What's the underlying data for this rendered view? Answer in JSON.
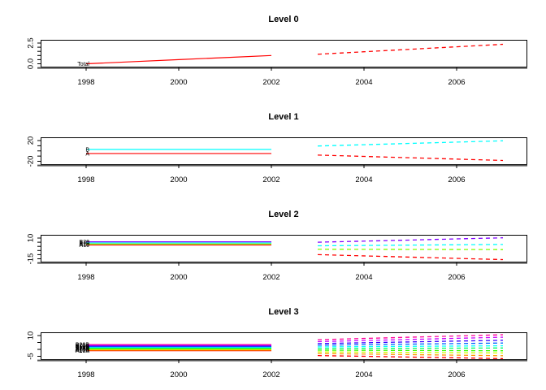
{
  "figure": {
    "background": "#FFFFFF",
    "axis_color": "#000000",
    "heavy_axis_color": "#555555"
  },
  "chart_data": [
    {
      "type": "line",
      "title": "Level 0",
      "x_hist": [
        1998,
        1999,
        2000,
        2001,
        2002
      ],
      "x_forecast": [
        2003,
        2004,
        2005,
        2006,
        2007
      ],
      "x_ticks": [
        1998,
        2000,
        2002,
        2004,
        2006
      ],
      "x_tick_labels": [
        "1998",
        "2000",
        "2002",
        "2004",
        "2006"
      ],
      "y_ticks": [
        0,
        0.5,
        1,
        1.5,
        2,
        2.5
      ],
      "y_axis_labels": [
        {
          "value": 2.5,
          "label": "2.5"
        },
        {
          "value": 0.0,
          "label": "0.0"
        }
      ],
      "forecast_style": "dashed",
      "series": [
        {
          "name": "Total",
          "color": "#FF0000",
          "hist": [
            0,
            0.25,
            0.5,
            0.75,
            1.0
          ],
          "forecast": [
            1.15,
            1.45,
            1.75,
            2.05,
            2.35
          ]
        }
      ]
    },
    {
      "type": "line",
      "title": "Level 1",
      "x_hist": [
        1998,
        1999,
        2000,
        2001,
        2002
      ],
      "x_forecast": [
        2003,
        2004,
        2005,
        2006,
        2007
      ],
      "x_ticks": [
        1998,
        2000,
        2002,
        2004,
        2006
      ],
      "x_tick_labels": [
        "1998",
        "2000",
        "2002",
        "2004",
        "2006"
      ],
      "y_ticks": [
        -20,
        -10,
        0,
        10,
        20
      ],
      "y_axis_labels": [
        {
          "value": 20,
          "label": "20"
        },
        {
          "value": -20,
          "label": "-20"
        }
      ],
      "forecast_style": "dashed",
      "series": [
        {
          "name": "A",
          "color": "#FF0000",
          "hist": [
            -5,
            -5,
            -5,
            -5,
            -5
          ],
          "forecast": [
            -8,
            -10.6,
            -13.2,
            -15.8,
            -18.4
          ]
        },
        {
          "name": "B",
          "color": "#00FFFF",
          "hist": [
            3,
            3,
            3,
            3,
            3
          ],
          "forecast": [
            9.5,
            12,
            14.5,
            17,
            19.5
          ]
        }
      ]
    },
    {
      "type": "line",
      "title": "Level 2",
      "x_hist": [
        1998,
        1999,
        2000,
        2001,
        2002
      ],
      "x_forecast": [
        2003,
        2004,
        2005,
        2006,
        2007
      ],
      "x_ticks": [
        1998,
        2000,
        2002,
        2004,
        2006
      ],
      "x_tick_labels": [
        "1998",
        "2000",
        "2002",
        "2004",
        "2006"
      ],
      "y_ticks": [
        -15,
        -10,
        -5,
        0,
        5,
        10
      ],
      "y_axis_labels": [
        {
          "value": 10,
          "label": "10"
        },
        {
          "value": -15,
          "label": "-15"
        }
      ],
      "forecast_style": "dashed",
      "series": [
        {
          "name": "A10",
          "color": "#FF0000",
          "hist": [
            1.6,
            1.6,
            1.6,
            1.6,
            1.6
          ],
          "forecast": [
            -10,
            -11.5,
            -13,
            -14.5,
            -16
          ]
        },
        {
          "name": "A20",
          "color": "#80FF00",
          "hist": [
            2.9,
            2.9,
            2.9,
            2.9,
            2.9
          ],
          "forecast": [
            -3.5,
            -3.6,
            -3.7,
            -3.8,
            -3.9
          ]
        },
        {
          "name": "B10",
          "color": "#00FFFF",
          "hist": [
            4.2,
            4.2,
            4.2,
            4.2,
            4.2
          ],
          "forecast": [
            0.7,
            1.1,
            1.5,
            1.9,
            2.3
          ]
        },
        {
          "name": "B20",
          "color": "#8000FF",
          "hist": [
            5.5,
            5.5,
            5.5,
            5.5,
            5.5
          ],
          "forecast": [
            5,
            6.3,
            7.6,
            9,
            10.3
          ]
        }
      ]
    },
    {
      "type": "line",
      "title": "Level 3",
      "x_hist": [
        1998,
        1999,
        2000,
        2001,
        2002
      ],
      "x_forecast": [
        2003,
        2004,
        2005,
        2006,
        2007
      ],
      "x_ticks": [
        1998,
        2000,
        2002,
        2004,
        2006
      ],
      "x_tick_labels": [
        "1998",
        "2000",
        "2002",
        "2004",
        "2006"
      ],
      "y_ticks": [
        -5,
        0,
        5,
        10
      ],
      "y_axis_labels": [
        {
          "value": 10,
          "label": "10"
        },
        {
          "value": -5,
          "label": "-5"
        }
      ],
      "forecast_style": "dashed",
      "series": [
        {
          "name": "A10A",
          "color": "#FF0000",
          "hist": [
            -1.0,
            -1.0,
            -1.0,
            -1.0,
            -1.0
          ],
          "forecast": [
            -4.5,
            -5.0,
            -5.6,
            -6.1,
            -6.7
          ]
        },
        {
          "name": "A10B",
          "color": "#FF9900",
          "hist": [
            -0.5,
            -0.5,
            -0.5,
            -0.5,
            -0.5
          ],
          "forecast": [
            -3.0,
            -3.4,
            -3.8,
            -4.2,
            -4.6
          ]
        },
        {
          "name": "A10C",
          "color": "#CCFF00",
          "hist": [
            0.0,
            0.0,
            0.0,
            0.0,
            0.0
          ],
          "forecast": [
            -1.8,
            -2.0,
            -2.2,
            -2.4,
            -2.6
          ]
        },
        {
          "name": "A20A",
          "color": "#33FF00",
          "hist": [
            0.5,
            0.5,
            0.5,
            0.5,
            0.5
          ],
          "forecast": [
            -0.6,
            -0.7,
            -0.8,
            -0.9,
            -1.0
          ]
        },
        {
          "name": "A20B",
          "color": "#00FF66",
          "hist": [
            1.0,
            1.0,
            1.0,
            1.0,
            1.0
          ],
          "forecast": [
            0.6,
            0.7,
            0.8,
            0.9,
            1.0
          ]
        },
        {
          "name": "B10A",
          "color": "#00FFFF",
          "hist": [
            1.5,
            1.5,
            1.5,
            1.5,
            1.5
          ],
          "forecast": [
            1.8,
            2.0,
            2.2,
            2.4,
            2.6
          ]
        },
        {
          "name": "B10B",
          "color": "#0066FF",
          "hist": [
            2.0,
            2.0,
            2.0,
            2.0,
            2.0
          ],
          "forecast": [
            3.0,
            3.4,
            3.8,
            4.2,
            4.6
          ]
        },
        {
          "name": "B10C",
          "color": "#3300FF",
          "hist": [
            2.5,
            2.5,
            2.5,
            2.5,
            2.5
          ],
          "forecast": [
            4.2,
            4.8,
            5.4,
            6.0,
            6.6
          ]
        },
        {
          "name": "B20A",
          "color": "#CC00FF",
          "hist": [
            3.0,
            3.0,
            3.0,
            3.0,
            3.0
          ],
          "forecast": [
            5.6,
            6.4,
            7.2,
            8.0,
            8.8
          ]
        },
        {
          "name": "B20B",
          "color": "#FF0099",
          "hist": [
            3.5,
            3.5,
            3.5,
            3.5,
            3.5
          ],
          "forecast": [
            7.0,
            7.9,
            8.8,
            9.7,
            10.6
          ]
        }
      ]
    }
  ]
}
